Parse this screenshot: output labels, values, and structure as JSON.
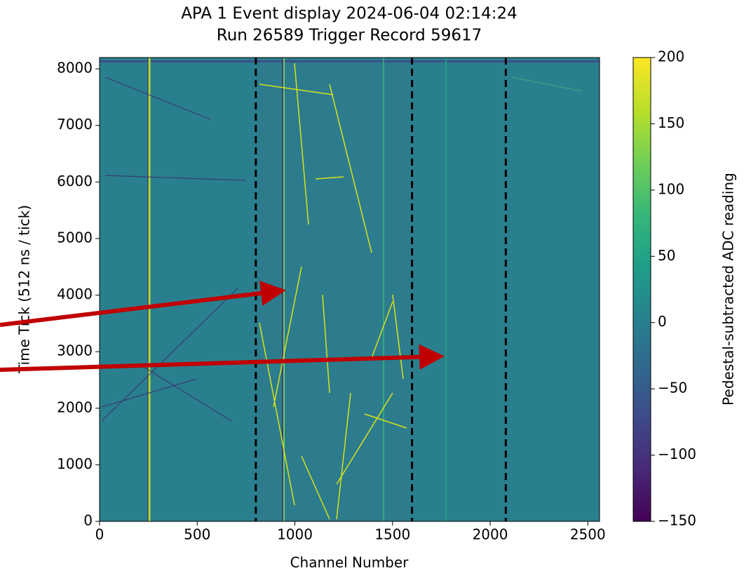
{
  "chart_data": {
    "type": "heatmap",
    "title": "APA 1 Event display 2024-06-04 02:14:24",
    "subtitle": "Run 26589 Trigger Record 59617",
    "xlabel": "Channel Number",
    "ylabel": "Time Tick (512 ns / tick)",
    "xlim": [
      0,
      2560
    ],
    "ylim": [
      0,
      8200
    ],
    "xticks": [
      0,
      500,
      1000,
      1500,
      2000,
      2500
    ],
    "yticks": [
      0,
      1000,
      2000,
      3000,
      4000,
      5000,
      6000,
      7000,
      8000
    ],
    "vlines": {
      "values": [
        800,
        1600,
        2080
      ],
      "color": "#000000",
      "style": "dashed"
    },
    "colorbar": {
      "label": "Pedestal-subtracted ADC reading",
      "colormap": "viridis",
      "lim": [
        -150,
        200
      ],
      "ticks": [
        {
          "value": -150,
          "label": "−150"
        },
        {
          "value": -100,
          "label": "−100"
        },
        {
          "value": -50,
          "label": "−50"
        },
        0,
        50,
        100,
        150,
        200
      ]
    }
  }
}
